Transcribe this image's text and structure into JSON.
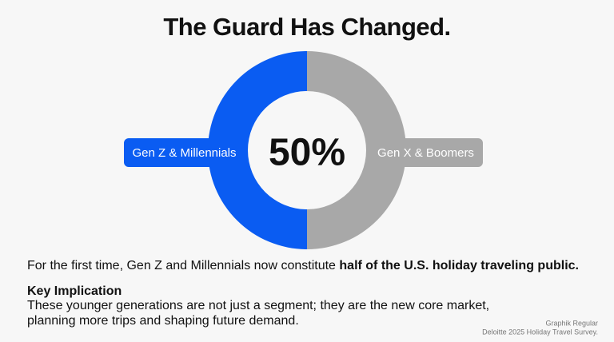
{
  "chart_data": {
    "type": "donut",
    "title": "The Guard Has Changed.",
    "categories": [
      "Gen Z & Millennials",
      "Gen X & Boomers"
    ],
    "values": [
      50,
      50
    ],
    "colors": [
      "#0a5cf2",
      "#a8a8a8"
    ],
    "center_label": "50%"
  },
  "text": {
    "summary": "For the first time, Gen Z and Millennials now constitute",
    "summary_emphasis": "half of the U.S. holiday traveling public.",
    "implication_heading": "Key Implication",
    "implication_lines": [
      "These younger generations are not just a segment; they are the new core market,",
      "planning more trips and shaping future demand."
    ],
    "footnote_lines": [
      "Graphik Regular",
      "Deloitte 2025 Holiday Travel Survey."
    ]
  }
}
